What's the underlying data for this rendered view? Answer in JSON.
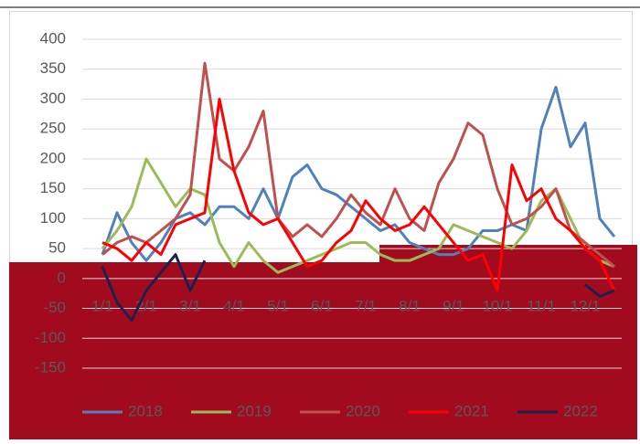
{
  "chart_data": {
    "type": "line",
    "categories": [
      "1/1",
      null,
      null,
      "2/1",
      null,
      null,
      "3/1",
      null,
      null,
      "4/1",
      null,
      null,
      "5/1",
      null,
      null,
      "6/1",
      null,
      null,
      "7/1",
      null,
      null,
      "8/1",
      null,
      null,
      "9/1",
      null,
      null,
      "10/1",
      null,
      null,
      "11/1",
      null,
      null,
      "12/1",
      null,
      null
    ],
    "series": [
      {
        "name": "2018",
        "color": "#4f81bd",
        "values": [
          40,
          110,
          60,
          30,
          60,
          100,
          110,
          90,
          120,
          120,
          100,
          150,
          100,
          170,
          190,
          150,
          140,
          120,
          100,
          80,
          90,
          60,
          50,
          40,
          40,
          50,
          80,
          80,
          90,
          80,
          250,
          320,
          220,
          260,
          100,
          70
        ]
      },
      {
        "name": "2019",
        "color": "#9bbb59",
        "values": [
          50,
          80,
          120,
          200,
          160,
          120,
          150,
          140,
          60,
          20,
          60,
          30,
          10,
          20,
          30,
          40,
          50,
          60,
          60,
          40,
          30,
          30,
          40,
          50,
          90,
          80,
          70,
          60,
          50,
          80,
          130,
          150,
          100,
          50,
          30,
          20
        ]
      },
      {
        "name": "2020",
        "color": "#c0504d",
        "values": [
          40,
          60,
          70,
          60,
          80,
          100,
          140,
          360,
          200,
          180,
          220,
          280,
          100,
          70,
          90,
          70,
          100,
          140,
          110,
          90,
          150,
          100,
          80,
          160,
          200,
          260,
          240,
          150,
          90,
          100,
          120,
          150,
          80,
          60,
          40,
          20
        ]
      },
      {
        "name": "2021",
        "color": "#ff0000",
        "values": [
          60,
          50,
          30,
          60,
          40,
          90,
          100,
          110,
          300,
          180,
          110,
          90,
          100,
          60,
          20,
          30,
          60,
          80,
          130,
          100,
          80,
          90,
          120,
          90,
          60,
          30,
          40,
          -20,
          190,
          130,
          150,
          100,
          80,
          50,
          30,
          -20
        ]
      },
      {
        "name": "2022",
        "color": "#1f1f4f",
        "values": [
          20,
          -40,
          -70,
          -20,
          10,
          40,
          -20,
          30,
          null,
          null,
          null,
          null,
          null,
          null,
          null,
          null,
          null,
          null,
          null,
          null,
          null,
          null,
          null,
          null,
          null,
          null,
          null,
          null,
          null,
          null,
          null,
          null,
          null,
          -10,
          -30,
          -20
        ]
      }
    ],
    "ylim": [
      -150,
      400
    ],
    "yticks": [
      -150,
      -100,
      -50,
      0,
      50,
      100,
      150,
      200,
      250,
      300,
      350,
      400
    ],
    "grid": true,
    "legend": "bottom"
  }
}
